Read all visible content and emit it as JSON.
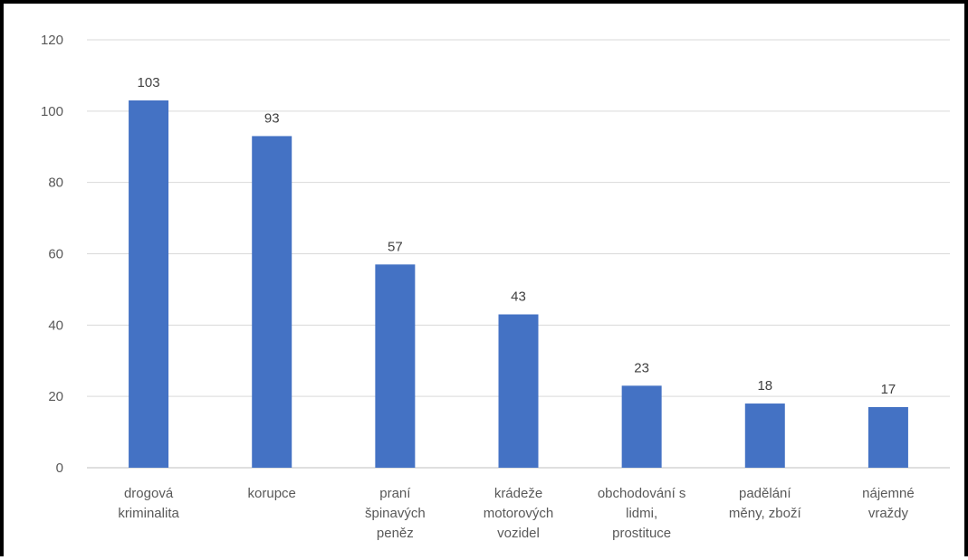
{
  "chart_data": {
    "type": "bar",
    "title": "",
    "xlabel": "",
    "ylabel": "",
    "ylim": [
      0,
      120
    ],
    "yticks": [
      0,
      20,
      40,
      60,
      80,
      100,
      120
    ],
    "grid": true,
    "legend": "none",
    "bar_color": "#4472C4",
    "categories": [
      [
        "drogová",
        "kriminalita"
      ],
      [
        "korupce"
      ],
      [
        "praní",
        "špinavých",
        "peněz"
      ],
      [
        "krádeže",
        "motorových",
        "vozidel"
      ],
      [
        "obchodování s",
        "lidmi,",
        "prostituce"
      ],
      [
        "padělání",
        "měny, zboží"
      ],
      [
        "nájemné",
        "vraždy"
      ]
    ],
    "values": [
      103,
      93,
      57,
      43,
      23,
      18,
      17
    ]
  }
}
